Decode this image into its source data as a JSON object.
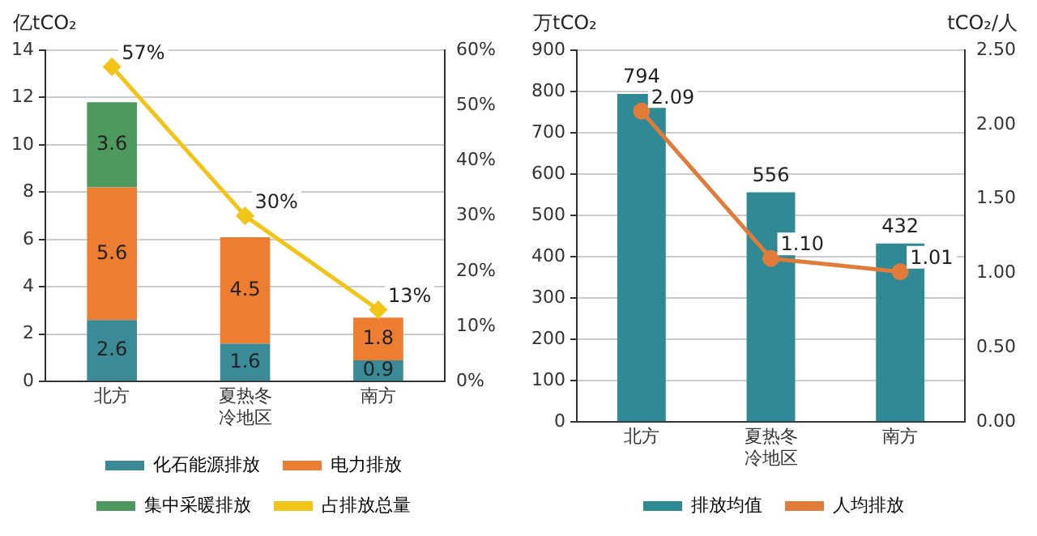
{
  "chart_data": [
    {
      "type": "bar",
      "stacked": true,
      "ylabel": "亿tCO₂",
      "categories": [
        "北方",
        "夏热冬冷地区",
        "南方"
      ],
      "ylim": [
        0,
        14
      ],
      "yticks": [
        0,
        2,
        4,
        6,
        8,
        10,
        12,
        14
      ],
      "y2lim": [
        0,
        60
      ],
      "y2ticks": [
        {
          "value": 0,
          "label": "0%"
        },
        {
          "value": 10,
          "label": "10%"
        },
        {
          "value": 20,
          "label": "20%"
        },
        {
          "value": 30,
          "label": "30%"
        },
        {
          "value": 40,
          "label": "40%"
        },
        {
          "value": 50,
          "label": "50%"
        },
        {
          "value": 60,
          "label": "60%"
        }
      ],
      "grid": "y",
      "legend": "bottom",
      "data_labels": true,
      "series": [
        {
          "name": "化石能源排放",
          "color": "#3a8a98",
          "values": [
            2.6,
            1.6,
            0.9
          ]
        },
        {
          "name": "电力排放",
          "color": "#ed7d31",
          "values": [
            5.6,
            4.5,
            1.8
          ]
        },
        {
          "name": "集中采暖排放",
          "color": "#4e9a5e",
          "values": [
            3.6,
            null,
            null
          ]
        },
        {
          "name": "占排放总量",
          "type": "line",
          "axis": "y2",
          "color": "#f2c418",
          "marker": "diamond",
          "values": [
            57,
            30,
            13
          ],
          "value_labels": [
            "57%",
            "30%",
            "13%"
          ]
        }
      ]
    },
    {
      "type": "bar",
      "ylabel": "万tCO₂",
      "y2label": "tCO₂/人",
      "categories": [
        "北方",
        "夏热冬冷地区",
        "南方"
      ],
      "ylim": [
        0,
        900
      ],
      "yticks": [
        0,
        100,
        200,
        300,
        400,
        500,
        600,
        700,
        800,
        900
      ],
      "y2lim": [
        0,
        2.5
      ],
      "y2ticks": [
        {
          "value": 0,
          "label": "0.00"
        },
        {
          "value": 0.5,
          "label": "0.50"
        },
        {
          "value": 1,
          "label": "1.00"
        },
        {
          "value": 1.5,
          "label": "1.50"
        },
        {
          "value": 2,
          "label": "2.00"
        },
        {
          "value": 2.5,
          "label": "2.50"
        }
      ],
      "grid": "y",
      "legend": "bottom",
      "data_labels": true,
      "series": [
        {
          "name": "排放均值",
          "color": "#2f8a96",
          "values": [
            794,
            556,
            432
          ]
        },
        {
          "name": "人均排放",
          "type": "line",
          "axis": "y2",
          "color": "#e07b39",
          "marker": "circle",
          "values": [
            2.09,
            1.1,
            1.01
          ],
          "value_labels": [
            "2.09",
            "1.10",
            "1.01"
          ]
        }
      ]
    }
  ]
}
